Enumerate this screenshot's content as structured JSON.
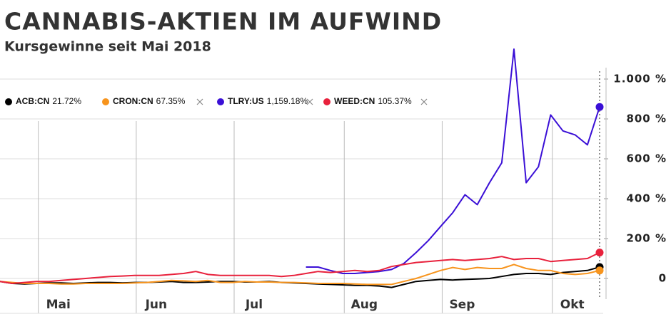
{
  "chart_data": {
    "type": "line",
    "title": "CANNABIS-AKTIEN IM AUFWIND",
    "subtitle": "Kursgewinne seit Mai 2018",
    "categories": [
      null,
      null,
      null,
      null,
      null,
      "Mai",
      null,
      null,
      null,
      null,
      null,
      null,
      null,
      "Jun",
      null,
      null,
      null,
      null,
      null,
      null,
      null,
      "Jul",
      null,
      null,
      null,
      null,
      null,
      null,
      null,
      null,
      "Aug",
      null,
      null,
      null,
      null,
      null,
      null,
      null,
      "Sep",
      null,
      null,
      null,
      null,
      null,
      null,
      null,
      null,
      "Okt",
      null,
      null
    ],
    "series": [
      {
        "name": "ACB:CN",
        "legend_value": "21.72%",
        "color": "#000000",
        "values": [
          -15,
          -25,
          -28,
          -25,
          -22,
          -22,
          -25,
          -22,
          -20,
          -20,
          -22,
          -20,
          -20,
          -18,
          -15,
          -20,
          -20,
          -18,
          -15,
          -15,
          -18,
          -18,
          -15,
          -20,
          -22,
          -25,
          -28,
          -30,
          -32,
          -35,
          -35,
          -38,
          -45,
          -30,
          -15,
          -10,
          -5,
          -8,
          -5,
          -3,
          0,
          10,
          20,
          25,
          25,
          20,
          30,
          35,
          40,
          57
        ]
      },
      {
        "name": "CRON:CN",
        "legend_value": "67.35%",
        "color": "#f7941d",
        "values": [
          -15,
          -20,
          -25,
          -25,
          -25,
          -28,
          -28,
          -25,
          -25,
          -25,
          -25,
          -22,
          -20,
          -15,
          -10,
          -12,
          -15,
          -10,
          -20,
          -20,
          -15,
          -18,
          -18,
          -20,
          -20,
          -22,
          -25,
          -25,
          -25,
          -28,
          -30,
          -30,
          -30,
          -15,
          0,
          20,
          40,
          55,
          45,
          55,
          50,
          50,
          70,
          50,
          40,
          40,
          25,
          20,
          25,
          40
        ]
      },
      {
        "name": "TLRY:US",
        "legend_value": "1,159.18%",
        "color": "#3a0fd6",
        "values": [
          null,
          null,
          null,
          null,
          null,
          null,
          null,
          null,
          null,
          null,
          null,
          null,
          null,
          null,
          null,
          null,
          null,
          null,
          null,
          null,
          null,
          null,
          null,
          null,
          null,
          57,
          57,
          40,
          25,
          25,
          30,
          35,
          45,
          75,
          130,
          190,
          260,
          330,
          420,
          370,
          480,
          580,
          1150,
          480,
          560,
          820,
          740,
          720,
          670,
          860
        ]
      },
      {
        "name": "WEED:CN",
        "legend_value": "105.37%",
        "color": "#e8213c",
        "values": [
          -15,
          -25,
          -20,
          -15,
          -15,
          -10,
          -5,
          0,
          5,
          10,
          12,
          15,
          15,
          15,
          20,
          25,
          35,
          20,
          15,
          15,
          15,
          15,
          15,
          10,
          15,
          25,
          35,
          30,
          35,
          40,
          35,
          40,
          60,
          70,
          80,
          85,
          90,
          95,
          90,
          95,
          100,
          110,
          95,
          100,
          100,
          85,
          90,
          95,
          100,
          130
        ]
      }
    ],
    "ylim": [
      -175,
      1200
    ],
    "yticks": [
      0,
      {
        "value": 200,
        "label": "200 %"
      },
      {
        "value": 400,
        "label": "400 %"
      },
      {
        "value": 600,
        "label": "600 %"
      },
      {
        "value": 800,
        "label": "800 %"
      },
      {
        "value": 1000,
        "label": "1.000 %"
      }
    ],
    "grid": true
  }
}
